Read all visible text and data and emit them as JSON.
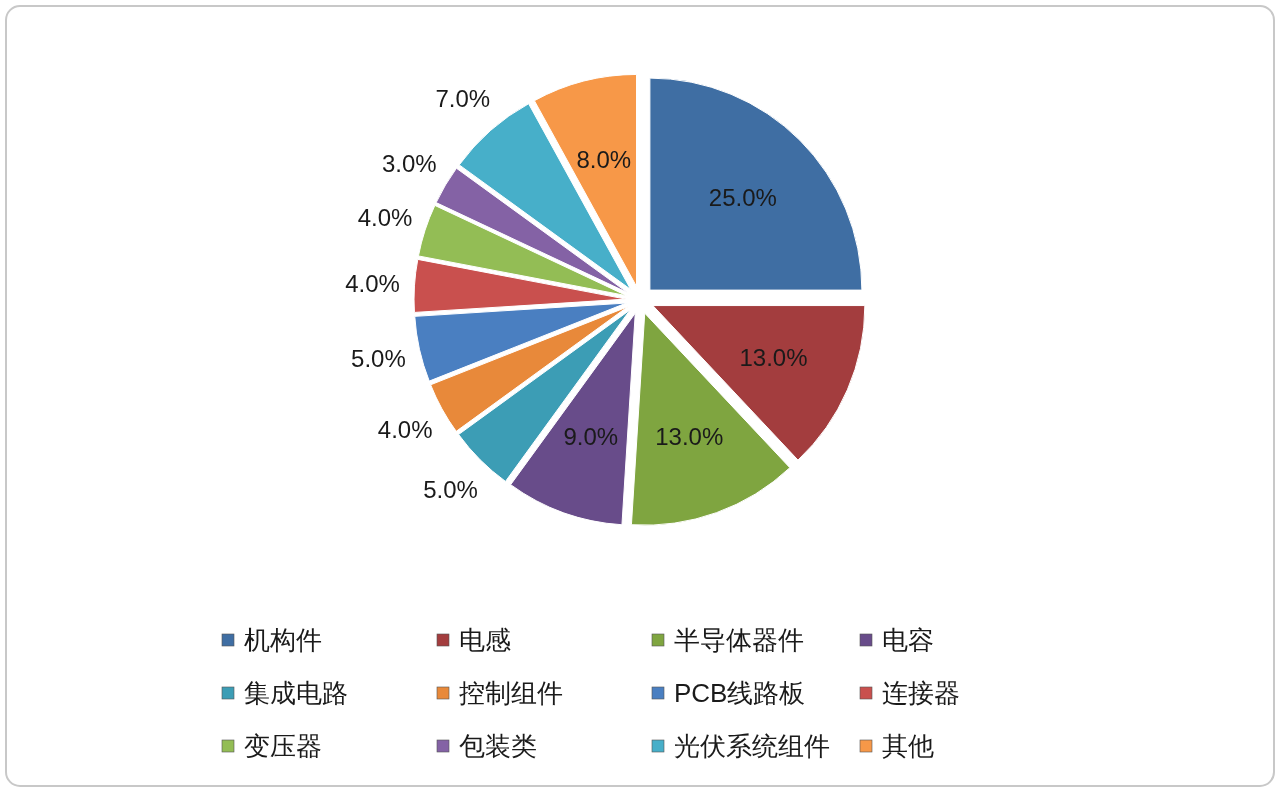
{
  "chart_data": {
    "type": "pie",
    "categories": [
      "机构件",
      "电感",
      "半导体器件",
      "电容",
      "集成电路",
      "控制组件",
      "PCB线路板",
      "连接器",
      "变压器",
      "包装类",
      "光伏系统组件",
      "其他"
    ],
    "values": [
      25,
      13,
      13,
      9,
      5,
      4,
      5,
      4,
      4,
      3,
      7,
      8
    ],
    "colors": [
      "#3f6ea3",
      "#a33d3e",
      "#7fa540",
      "#684c8a",
      "#3c9db5",
      "#e8893a",
      "#4a7fc1",
      "#c9504e",
      "#93bd55",
      "#8462a5",
      "#47afc9",
      "#f79848"
    ],
    "value_labels": [
      "25.0%",
      "13.0%",
      "13.0%",
      "9.0%",
      "5.0%",
      "4.0%",
      "5.0%",
      "4.0%",
      "4.0%",
      "3.0%",
      "7.0%",
      "8.0%"
    ],
    "legend": "bottom"
  }
}
